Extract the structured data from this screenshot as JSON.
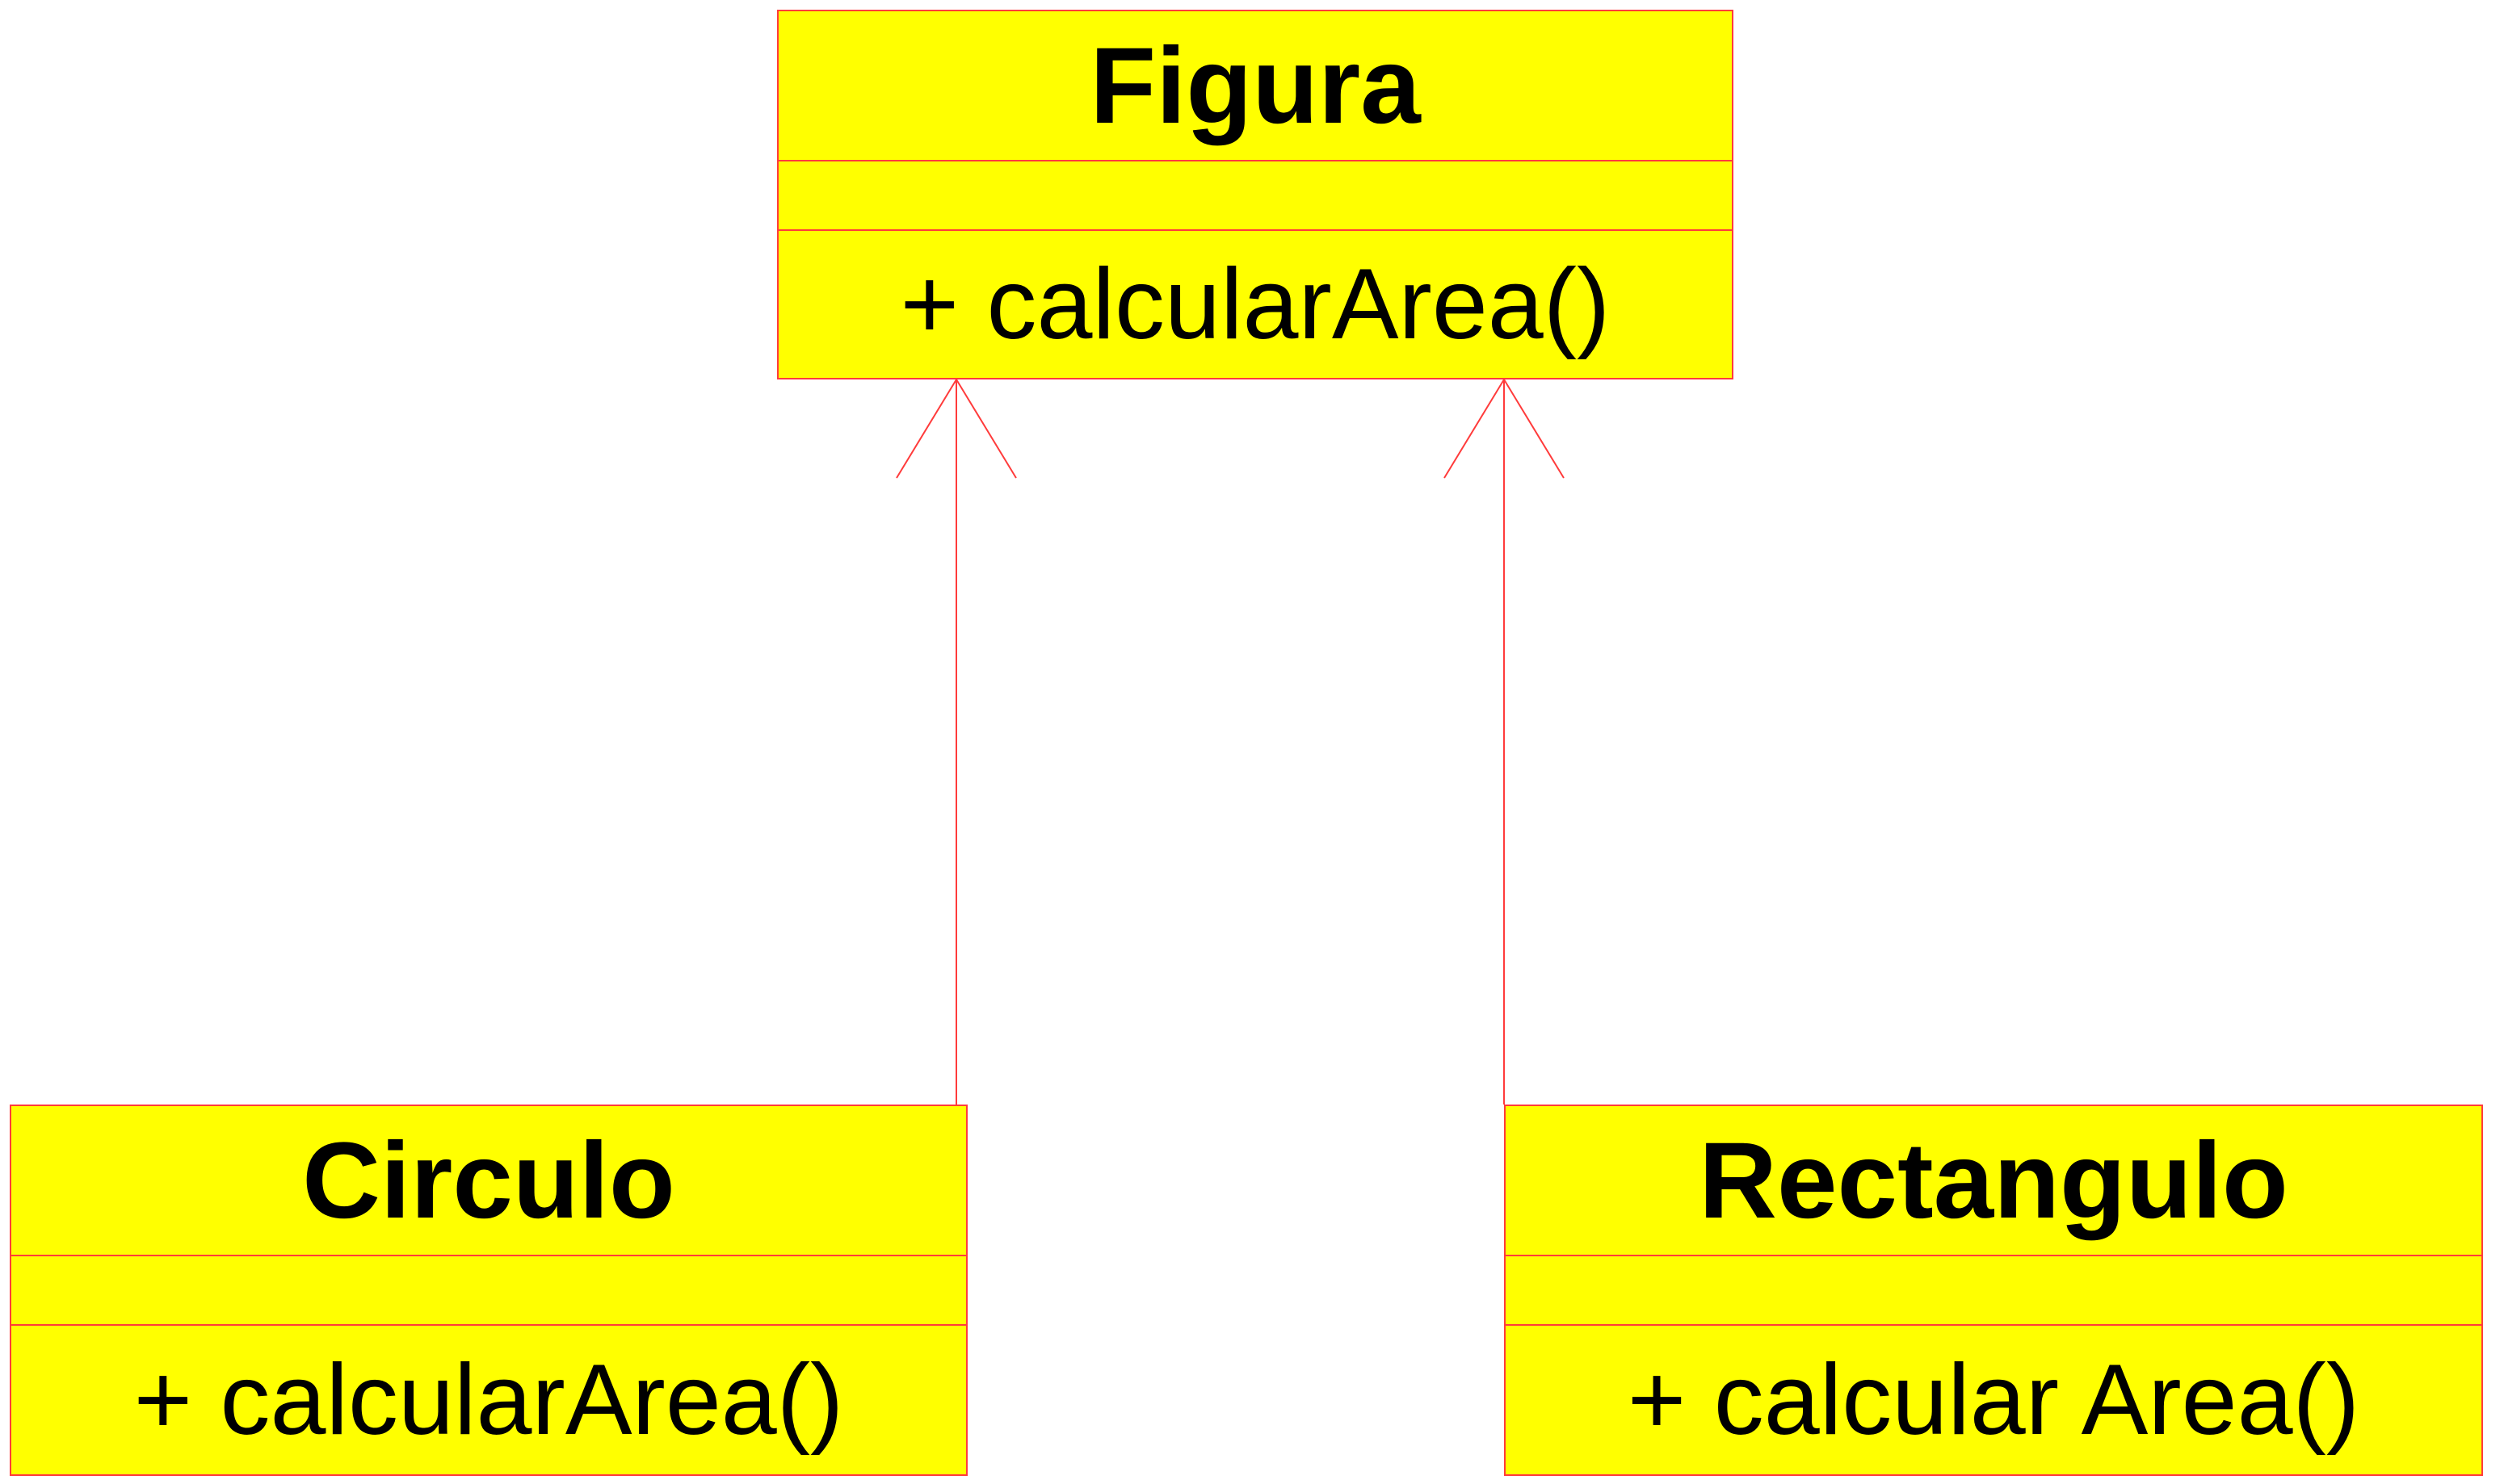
{
  "diagram": {
    "line_color": "#ff3b3b",
    "box_fill": "#ffff00",
    "text_color": "#000000",
    "classes": [
      {
        "id": "figura",
        "name": "Figura",
        "attributes": "",
        "operations": "+ calcularArea()"
      },
      {
        "id": "circulo",
        "name": "Circulo",
        "attributes": "",
        "operations": "+ calcularArea()"
      },
      {
        "id": "rectangulo",
        "name": "Rectangulo",
        "attributes": "",
        "operations": "+ calcular Area()"
      }
    ],
    "relationships": [
      {
        "from": "Circulo",
        "to": "Figura",
        "type": "generalization"
      },
      {
        "from": "Rectangulo",
        "to": "Figura",
        "type": "generalization"
      }
    ]
  }
}
